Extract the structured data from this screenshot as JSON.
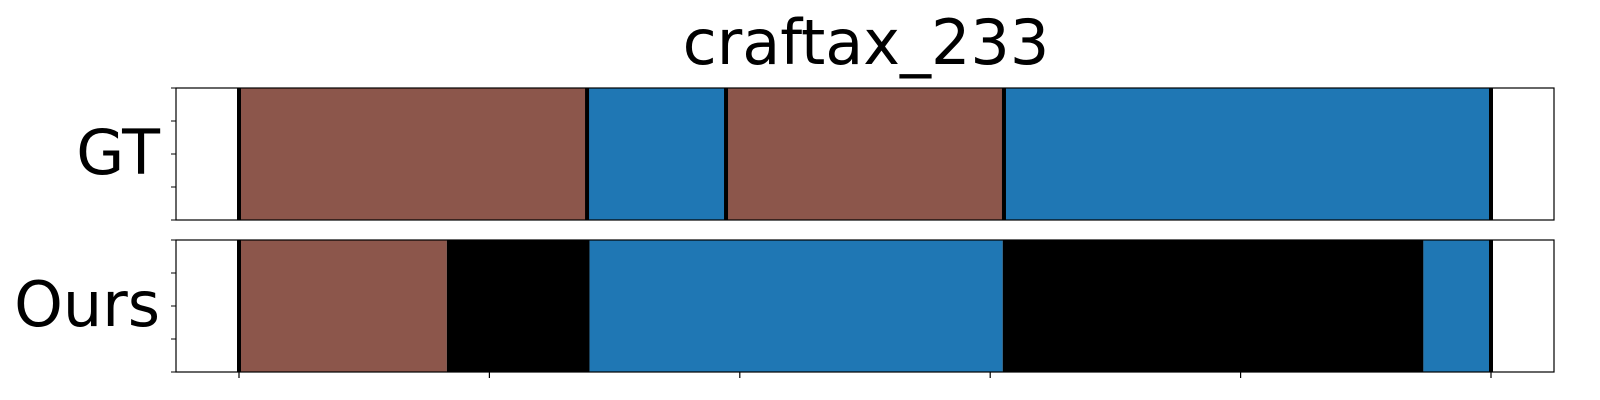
{
  "chart_data": {
    "type": "segmentation-timeline",
    "title": "craftax_233",
    "xlim": [
      0,
      100
    ],
    "x_ticks": [
      0,
      20,
      40,
      60,
      80,
      100
    ],
    "colors": {
      "brown": "#8c564b",
      "blue": "#1f77b4",
      "black": "#000000"
    },
    "rows": [
      {
        "label": "GT",
        "segments": [
          {
            "start": 0.0,
            "end": 27.8,
            "color": "#8c564b"
          },
          {
            "start": 27.8,
            "end": 38.9,
            "color": "#1f77b4"
          },
          {
            "start": 38.9,
            "end": 61.1,
            "color": "#8c564b"
          },
          {
            "start": 61.1,
            "end": 100.0,
            "color": "#1f77b4"
          }
        ],
        "boundaries": [
          0.0,
          27.8,
          38.9,
          61.1,
          100.0
        ]
      },
      {
        "label": "Ours",
        "segments": [
          {
            "start": 0.0,
            "end": 16.6,
            "color": "#8c564b"
          },
          {
            "start": 16.6,
            "end": 28.0,
            "color": "#000000"
          },
          {
            "start": 28.0,
            "end": 61.0,
            "color": "#1f77b4"
          },
          {
            "start": 61.0,
            "end": 94.6,
            "color": "#000000"
          },
          {
            "start": 94.6,
            "end": 100.0,
            "color": "#1f77b4"
          }
        ],
        "boundaries": [
          0.0,
          100.0
        ]
      }
    ]
  }
}
